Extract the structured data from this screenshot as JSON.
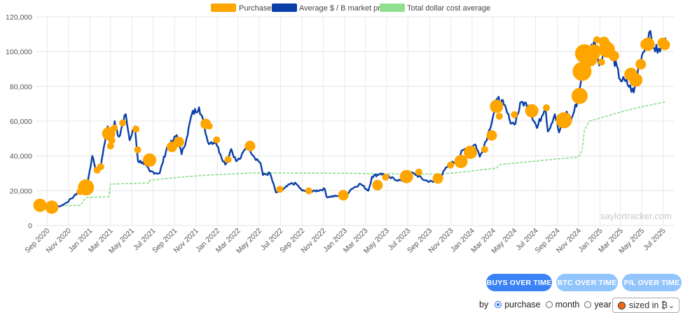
{
  "chart_data": {
    "type": "line",
    "legend": {
      "placement": "top",
      "items": [
        {
          "name": "Purchases",
          "color": "#ffa500"
        },
        {
          "name": "Average $ / B market price",
          "color": "#0a3fa8"
        },
        {
          "name": "Total dollar cost average",
          "color": "#90e090"
        }
      ]
    },
    "ylim": [
      0,
      120000
    ],
    "yticks": [
      "0",
      "20,000",
      "40,000",
      "60,000",
      "80,000",
      "100,000",
      "120,000"
    ],
    "ytick_values": [
      0,
      20000,
      40000,
      60000,
      80000,
      100000,
      120000
    ],
    "xticks": [
      "Sep 2020",
      "Nov 2020",
      "Jan 2021",
      "Mar 2021",
      "May 2021",
      "Jul 2021",
      "Sep 2021",
      "Nov 2021",
      "Jan 2022",
      "Mar 2022",
      "May 2022",
      "Jul 2022",
      "Sep 2022",
      "Nov 2022",
      "Jan 2023",
      "Mar 2023",
      "May 2023",
      "Jul 2023",
      "Sep 2023",
      "Nov 2023",
      "Jan 2024",
      "Mar 2024",
      "May 2024",
      "Jul 2024",
      "Sep 2024",
      "Nov 2024",
      "Jan 2025",
      "Mar 2025",
      "May 2025",
      "Jul 2025"
    ],
    "grid": true,
    "watermark": "saylortracker.com",
    "market_price": [
      [
        "2020-08-10",
        11700
      ],
      [
        "2020-09-01",
        11500
      ],
      [
        "2020-09-20",
        10800
      ],
      [
        "2020-10-10",
        11200
      ],
      [
        "2020-10-25",
        13000
      ],
      [
        "2020-11-10",
        15500
      ],
      [
        "2020-11-25",
        18500
      ],
      [
        "2020-12-10",
        18500
      ],
      [
        "2020-12-25",
        24000
      ],
      [
        "2021-01-08",
        40000
      ],
      [
        "2021-01-20",
        31000
      ],
      [
        "2021-02-01",
        33000
      ],
      [
        "2021-02-10",
        45000
      ],
      [
        "2021-02-21",
        57000
      ],
      [
        "2021-03-01",
        46000
      ],
      [
        "2021-03-13",
        60000
      ],
      [
        "2021-03-25",
        51000
      ],
      [
        "2021-04-14",
        64000
      ],
      [
        "2021-04-25",
        49000
      ],
      [
        "2021-05-10",
        57000
      ],
      [
        "2021-05-19",
        37000
      ],
      [
        "2021-06-01",
        36500
      ],
      [
        "2021-06-22",
        31000
      ],
      [
        "2021-07-20",
        30000
      ],
      [
        "2021-08-10",
        45000
      ],
      [
        "2021-08-25",
        48000
      ],
      [
        "2021-09-07",
        52000
      ],
      [
        "2021-09-21",
        41000
      ],
      [
        "2021-10-05",
        50000
      ],
      [
        "2021-10-20",
        64000
      ],
      [
        "2021-11-10",
        68000
      ],
      [
        "2021-11-25",
        57000
      ],
      [
        "2021-12-05",
        48000
      ],
      [
        "2021-12-28",
        48000
      ],
      [
        "2022-01-10",
        41000
      ],
      [
        "2022-01-24",
        35000
      ],
      [
        "2022-02-10",
        44000
      ],
      [
        "2022-02-24",
        37000
      ],
      [
        "2022-03-10",
        39000
      ],
      [
        "2022-03-28",
        47000
      ],
      [
        "2022-04-15",
        40000
      ],
      [
        "2022-05-05",
        36000
      ],
      [
        "2022-05-12",
        29000
      ],
      [
        "2022-06-01",
        30000
      ],
      [
        "2022-06-18",
        19000
      ],
      [
        "2022-07-01",
        19500
      ],
      [
        "2022-07-30",
        24000
      ],
      [
        "2022-08-15",
        24000
      ],
      [
        "2022-09-01",
        20000
      ],
      [
        "2022-10-01",
        19500
      ],
      [
        "2022-11-05",
        21000
      ],
      [
        "2022-11-10",
        16500
      ],
      [
        "2022-12-15",
        17000
      ],
      [
        "2023-01-01",
        16500
      ],
      [
        "2023-01-20",
        21000
      ],
      [
        "2023-02-15",
        24000
      ],
      [
        "2023-03-10",
        20000
      ],
      [
        "2023-03-20",
        28000
      ],
      [
        "2023-04-14",
        30000
      ],
      [
        "2023-05-10",
        27500
      ],
      [
        "2023-06-15",
        25500
      ],
      [
        "2023-06-23",
        30500
      ],
      [
        "2023-07-20",
        29800
      ],
      [
        "2023-08-18",
        26000
      ],
      [
        "2023-09-11",
        25000
      ],
      [
        "2023-10-01",
        27500
      ],
      [
        "2023-10-24",
        34500
      ],
      [
        "2023-11-15",
        37000
      ],
      [
        "2023-12-08",
        43500
      ],
      [
        "2024-01-11",
        46500
      ],
      [
        "2024-01-23",
        39500
      ],
      [
        "2024-02-15",
        52000
      ],
      [
        "2024-03-05",
        66000
      ],
      [
        "2024-03-14",
        73000
      ],
      [
        "2024-04-01",
        69500
      ],
      [
        "2024-04-17",
        61000
      ],
      [
        "2024-05-01",
        58000
      ],
      [
        "2024-05-21",
        71000
      ],
      [
        "2024-06-10",
        69000
      ],
      [
        "2024-07-05",
        56000
      ],
      [
        "2024-07-29",
        69000
      ],
      [
        "2024-08-05",
        54000
      ],
      [
        "2024-08-25",
        64000
      ],
      [
        "2024-09-06",
        53500
      ],
      [
        "2024-09-28",
        65500
      ],
      [
        "2024-10-10",
        60000
      ],
      [
        "2024-10-29",
        72000
      ],
      [
        "2024-11-13",
        90000
      ],
      [
        "2024-11-22",
        99000
      ],
      [
        "2024-12-05",
        101000
      ],
      [
        "2024-12-17",
        107000
      ],
      [
        "2024-12-30",
        92000
      ],
      [
        "2025-01-20",
        107000
      ],
      [
        "2025-02-03",
        100000
      ],
      [
        "2025-02-28",
        84000
      ],
      [
        "2025-03-15",
        83000
      ],
      [
        "2025-04-08",
        76500
      ],
      [
        "2025-04-25",
        94000
      ],
      [
        "2025-05-22",
        111000
      ],
      [
        "2025-06-05",
        102000
      ],
      [
        "2025-06-22",
        100000
      ],
      [
        "2025-07-08",
        108000
      ]
    ],
    "total_dollar_cost_average": [
      [
        "2020-08-10",
        11650
      ],
      [
        "2020-09-14",
        11400
      ],
      [
        "2020-12-04",
        11500
      ],
      [
        "2020-12-21",
        16100
      ],
      [
        "2021-02-24",
        16500
      ],
      [
        "2021-03-01",
        23800
      ],
      [
        "2021-06-21",
        24500
      ],
      [
        "2021-06-22",
        26000
      ],
      [
        "2021-09-13",
        27700
      ],
      [
        "2021-11-29",
        28900
      ],
      [
        "2022-02-01",
        29500
      ],
      [
        "2022-04-05",
        30200
      ],
      [
        "2022-12-28",
        30100
      ],
      [
        "2023-04-05",
        29700
      ],
      [
        "2023-09-25",
        29500
      ],
      [
        "2023-11-30",
        30600
      ],
      [
        "2024-03-11",
        33000
      ],
      [
        "2024-03-19",
        35000
      ],
      [
        "2024-06-20",
        36800
      ],
      [
        "2024-09-20",
        38600
      ],
      [
        "2024-10-31",
        39300
      ],
      [
        "2024-11-11",
        43000
      ],
      [
        "2024-11-18",
        55000
      ],
      [
        "2024-12-02",
        60000
      ],
      [
        "2025-01-06",
        62000
      ],
      [
        "2025-02-24",
        65000
      ],
      [
        "2025-05-05",
        68500
      ],
      [
        "2025-07-07",
        71000
      ]
    ],
    "purchases": [
      {
        "date": "2020-08-11",
        "price": 11600,
        "size": 3
      },
      {
        "date": "2020-09-14",
        "price": 10500,
        "size": 3
      },
      {
        "date": "2020-12-04",
        "price": 19500,
        "size": 1
      },
      {
        "date": "2020-12-21",
        "price": 21900,
        "size": 4
      },
      {
        "date": "2021-01-22",
        "price": 31800,
        "size": 1
      },
      {
        "date": "2021-02-01",
        "price": 33800,
        "size": 1
      },
      {
        "date": "2021-02-24",
        "price": 52800,
        "size": 3
      },
      {
        "date": "2021-03-01",
        "price": 45700,
        "size": 1
      },
      {
        "date": "2021-03-05",
        "price": 48900,
        "size": 1
      },
      {
        "date": "2021-03-12",
        "price": 56000,
        "size": 1
      },
      {
        "date": "2021-04-05",
        "price": 59000,
        "size": 1
      },
      {
        "date": "2021-05-13",
        "price": 55400,
        "size": 1
      },
      {
        "date": "2021-05-18",
        "price": 43500,
        "size": 1
      },
      {
        "date": "2021-06-21",
        "price": 37600,
        "size": 3
      },
      {
        "date": "2021-08-24",
        "price": 45200,
        "size": 2
      },
      {
        "date": "2021-09-13",
        "price": 48000,
        "size": 2
      },
      {
        "date": "2021-11-29",
        "price": 58400,
        "size": 2
      },
      {
        "date": "2021-12-09",
        "price": 57200,
        "size": 1
      },
      {
        "date": "2021-12-30",
        "price": 49200,
        "size": 1
      },
      {
        "date": "2022-02-01",
        "price": 37900,
        "size": 1
      },
      {
        "date": "2022-04-05",
        "price": 45700,
        "size": 2
      },
      {
        "date": "2022-06-29",
        "price": 20800,
        "size": 1
      },
      {
        "date": "2022-09-20",
        "price": 19900,
        "size": 1
      },
      {
        "date": "2022-12-28",
        "price": 17400,
        "size": 2
      },
      {
        "date": "2023-04-05",
        "price": 23200,
        "size": 2
      },
      {
        "date": "2023-04-28",
        "price": 27800,
        "size": 1
      },
      {
        "date": "2023-06-27",
        "price": 28100,
        "size": 3
      },
      {
        "date": "2023-08-01",
        "price": 30700,
        "size": 1
      },
      {
        "date": "2023-09-25",
        "price": 27000,
        "size": 2
      },
      {
        "date": "2023-10-31",
        "price": 34700,
        "size": 1
      },
      {
        "date": "2023-11-30",
        "price": 36800,
        "size": 3
      },
      {
        "date": "2023-12-27",
        "price": 42100,
        "size": 3
      },
      {
        "date": "2024-02-06",
        "price": 43700,
        "size": 1
      },
      {
        "date": "2024-02-26",
        "price": 51800,
        "size": 2
      },
      {
        "date": "2024-03-11",
        "price": 68500,
        "size": 3
      },
      {
        "date": "2024-03-19",
        "price": 62800,
        "size": 1
      },
      {
        "date": "2024-05-01",
        "price": 63700,
        "size": 1
      },
      {
        "date": "2024-06-20",
        "price": 65900,
        "size": 3
      },
      {
        "date": "2024-08-01",
        "price": 67700,
        "size": 1
      },
      {
        "date": "2024-09-20",
        "price": 60500,
        "size": 4
      },
      {
        "date": "2024-11-04",
        "price": 74500,
        "size": 4
      },
      {
        "date": "2024-11-11",
        "price": 88600,
        "size": 5
      },
      {
        "date": "2024-11-18",
        "price": 98800,
        "size": 5
      },
      {
        "date": "2024-12-02",
        "price": 95900,
        "size": 4
      },
      {
        "date": "2024-12-09",
        "price": 98800,
        "size": 4
      },
      {
        "date": "2024-12-16",
        "price": 100400,
        "size": 3
      },
      {
        "date": "2024-12-23",
        "price": 106800,
        "size": 1
      },
      {
        "date": "2025-01-06",
        "price": 94000,
        "size": 1
      },
      {
        "date": "2025-01-13",
        "price": 105600,
        "size": 2
      },
      {
        "date": "2025-01-21",
        "price": 101200,
        "size": 4
      },
      {
        "date": "2025-02-10",
        "price": 97500,
        "size": 2
      },
      {
        "date": "2025-03-31",
        "price": 86900,
        "size": 3
      },
      {
        "date": "2025-04-14",
        "price": 83600,
        "size": 3
      },
      {
        "date": "2025-04-28",
        "price": 92700,
        "size": 2
      },
      {
        "date": "2025-05-12",
        "price": 104100,
        "size": 2
      },
      {
        "date": "2025-05-19",
        "price": 104200,
        "size": 3
      },
      {
        "date": "2025-06-30",
        "price": 105000,
        "size": 2
      },
      {
        "date": "2025-07-06",
        "price": 103800,
        "size": 2
      }
    ]
  },
  "buttons": {
    "buys_over_time": "BUYS OVER TIME",
    "btc_over_time": "BTC OVER TIME",
    "pl_over_time": "P/L OVER TIME"
  },
  "controls": {
    "by_label": "by",
    "purchase_label": "purchase",
    "month_label": "month",
    "year_label": "year",
    "selected_option": "purchase",
    "size_select_value": "sized in ₿",
    "size_select_swatch_color": "#f26a12"
  }
}
